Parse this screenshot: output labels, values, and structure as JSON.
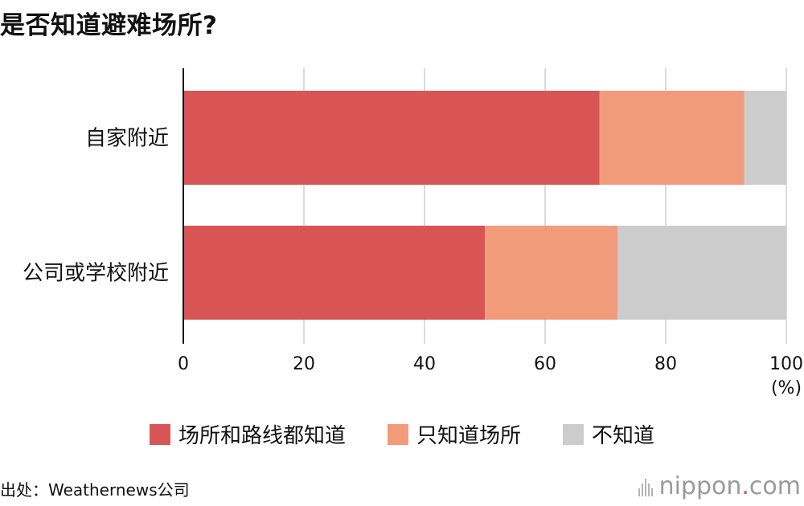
{
  "chart_data": {
    "type": "bar",
    "orientation": "horizontal",
    "stacked": true,
    "title": "是否知道避难场所?",
    "categories": [
      "自家附近",
      "公司或学校附近"
    ],
    "series": [
      {
        "name": "场所和路线都知道",
        "values": [
          69,
          50
        ],
        "color": "#d95555"
      },
      {
        "name": "只知道场所",
        "values": [
          24,
          22
        ],
        "color": "#f29b7b"
      },
      {
        "name": "不知道",
        "values": [
          7,
          28
        ],
        "color": "#cccccc"
      }
    ],
    "xlim": [
      0,
      100
    ],
    "xticks": [
      "0",
      "20",
      "40",
      "60",
      "80",
      "100"
    ],
    "xunit": "(%)",
    "grid": true,
    "legend_position": "bottom"
  },
  "source": "出处：Weathernews公司",
  "logo": {
    "name": "nippon",
    "dot": ".",
    "suffix": "com"
  }
}
